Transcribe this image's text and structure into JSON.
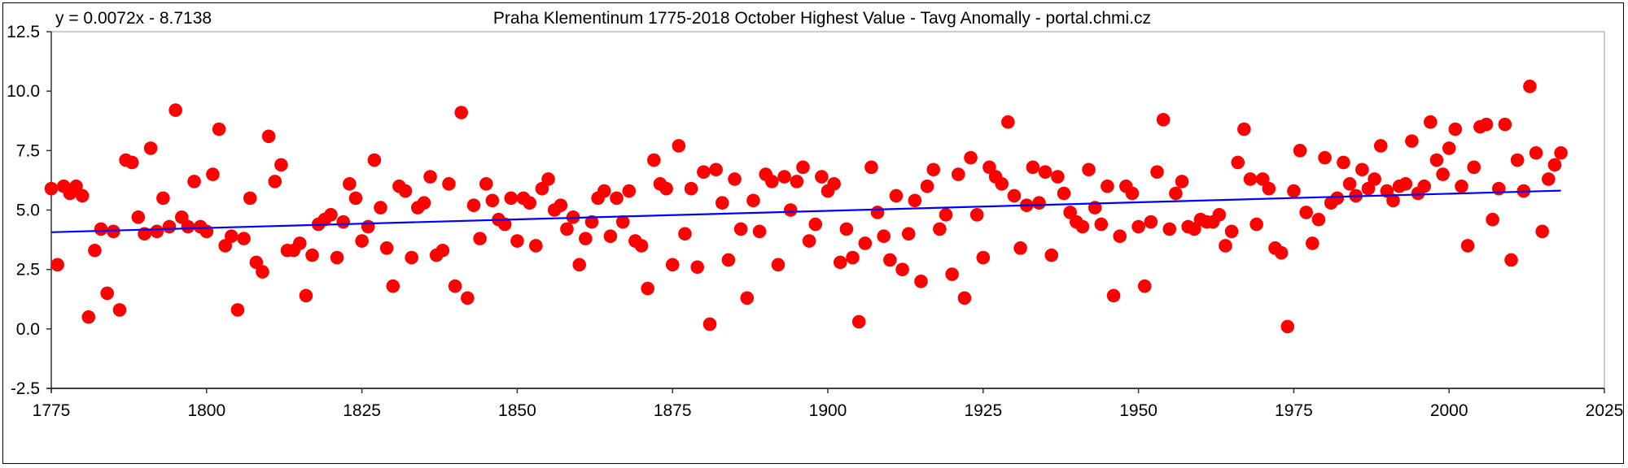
{
  "chart_data": {
    "type": "scatter",
    "title": "Praha Klementinum 1775-2018 October Highest Value - Tavg Anomally - portal.chmi.cz",
    "trendline_equation": "y = 0.0072x - 8.7138",
    "trendline": {
      "slope": 0.0072,
      "intercept": -8.7138,
      "x_range": [
        1775,
        2018
      ]
    },
    "xlabel": "",
    "ylabel": "",
    "xlim": [
      1775,
      2025
    ],
    "ylim": [
      -2.5,
      12.5
    ],
    "x_ticks": [
      "1775",
      "1800",
      "1825",
      "1850",
      "1875",
      "1900",
      "1925",
      "1950",
      "1975",
      "2000",
      "2025"
    ],
    "y_ticks": [
      "12.5",
      "10.0",
      "7.5",
      "5.0",
      "2.5",
      "0.0",
      "-2.5"
    ],
    "grid": false,
    "colors": {
      "points": "#ff0000",
      "trendline": "#0000ff"
    },
    "x_start": 1775,
    "values": [
      5.9,
      2.7,
      6.0,
      5.7,
      6.0,
      5.6,
      0.5,
      3.3,
      4.2,
      1.5,
      4.1,
      0.8,
      7.1,
      7.0,
      4.7,
      4.0,
      7.6,
      4.1,
      5.5,
      4.3,
      9.2,
      4.7,
      4.3,
      6.2,
      4.3,
      4.1,
      6.5,
      8.4,
      3.5,
      3.9,
      0.8,
      3.8,
      5.5,
      2.8,
      2.4,
      8.1,
      6.2,
      6.9,
      3.3,
      3.3,
      3.6,
      1.4,
      3.1,
      4.4,
      4.6,
      4.8,
      3.0,
      4.5,
      6.1,
      5.5,
      3.7,
      4.3,
      7.1,
      5.1,
      3.4,
      1.8,
      6.0,
      5.8,
      3.0,
      5.1,
      5.3,
      6.4,
      3.1,
      3.3,
      6.1,
      1.8,
      9.1,
      1.3,
      5.2,
      3.8,
      6.1,
      5.4,
      4.6,
      4.4,
      5.5,
      3.7,
      5.5,
      5.3,
      3.5,
      5.9,
      6.3,
      5.0,
      5.2,
      4.2,
      4.7,
      2.7,
      3.8,
      4.5,
      5.5,
      5.8,
      3.9,
      5.5,
      4.5,
      5.8,
      3.7,
      3.5,
      1.7,
      7.1,
      6.1,
      5.9,
      2.7,
      7.7,
      4.0,
      5.9,
      2.6,
      6.6,
      0.2,
      6.7,
      5.3,
      2.9,
      6.3,
      4.2,
      1.3,
      5.4,
      4.1,
      6.5,
      6.2,
      2.7,
      6.4,
      5.0,
      6.2,
      6.8,
      3.7,
      4.4,
      6.4,
      5.8,
      6.1,
      2.8,
      4.2,
      3.0,
      0.3,
      3.6,
      6.8,
      4.9,
      3.9,
      2.9,
      5.6,
      2.5,
      4.0,
      5.4,
      2.0,
      6.0,
      6.7,
      4.2,
      4.8,
      2.3,
      6.5,
      1.3,
      7.2,
      4.8,
      3.0,
      6.8,
      6.4,
      6.1,
      8.7,
      5.6,
      3.4,
      5.2,
      6.8,
      5.3,
      6.6,
      3.1,
      6.4,
      5.7,
      4.9,
      4.5,
      4.3,
      6.7,
      5.1,
      4.4,
      6.0,
      1.4,
      3.9,
      6.0,
      5.7,
      4.3,
      1.8,
      4.5,
      6.6,
      8.8,
      4.2,
      5.7,
      6.2,
      4.3,
      4.2,
      4.6,
      4.5,
      4.5,
      4.8,
      3.5,
      4.1,
      7.0,
      8.4,
      6.3,
      4.4,
      6.3,
      5.9,
      3.4,
      3.2,
      0.1,
      5.8,
      7.5,
      4.9,
      3.6,
      4.6,
      7.2,
      5.3,
      5.5,
      7.0,
      6.1,
      5.6,
      6.7,
      5.9,
      6.3,
      7.7,
      5.8,
      5.4,
      6.0,
      6.1,
      7.9,
      5.7,
      6.0,
      8.7,
      7.1,
      6.5,
      7.6,
      8.4,
      6.0,
      3.5,
      6.8,
      8.5,
      8.6,
      4.6,
      5.9,
      8.6,
      2.9,
      7.1,
      5.8,
      10.2,
      7.4,
      4.1,
      6.3,
      6.9,
      7.4
    ]
  }
}
